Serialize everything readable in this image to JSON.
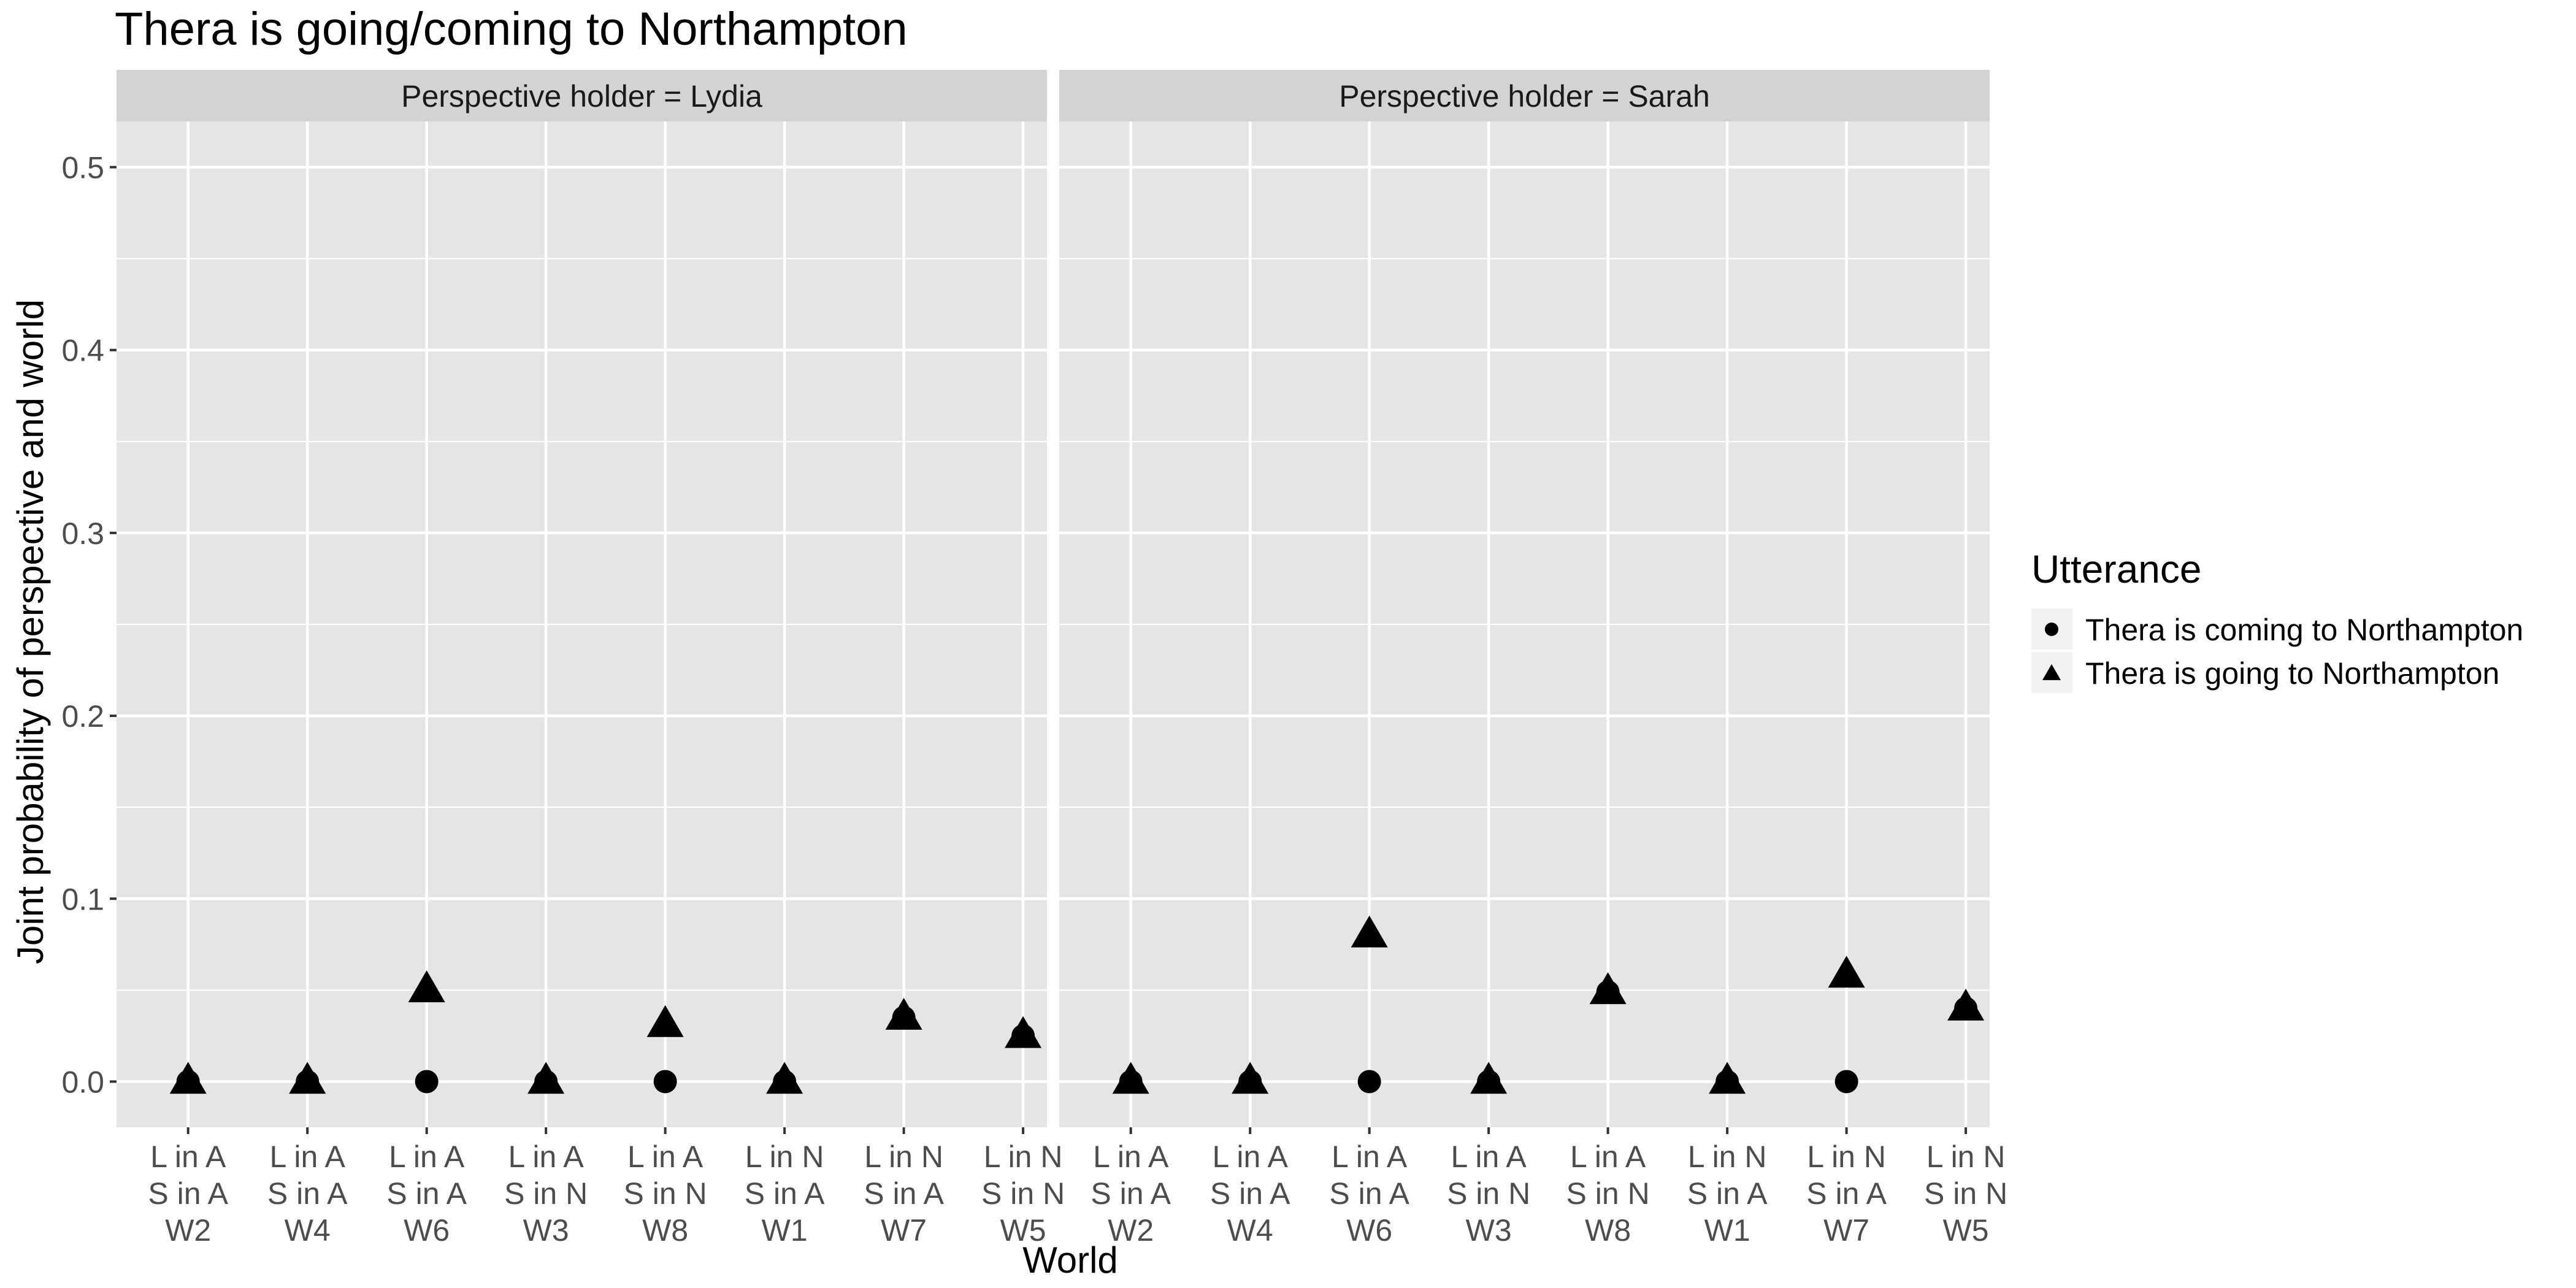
{
  "chart_data": {
    "type": "scatter",
    "title": "Thera is going/coming to Northampton",
    "xlabel": "World",
    "ylabel": "Joint probability of perspective and world",
    "ylim": [
      -0.025,
      0.525
    ],
    "y_ticks": [
      "0.0",
      "0.1",
      "0.2",
      "0.3",
      "0.4",
      "0.5"
    ],
    "y_tick_values": [
      0.0,
      0.1,
      0.2,
      0.3,
      0.4,
      0.5
    ],
    "categories": [
      {
        "line1": "L in A",
        "line2": "S in A",
        "line3": "W2"
      },
      {
        "line1": "L in A",
        "line2": "S in A",
        "line3": "W4"
      },
      {
        "line1": "L in A",
        "line2": "S in A",
        "line3": "W6"
      },
      {
        "line1": "L in A",
        "line2": "S in N",
        "line3": "W3"
      },
      {
        "line1": "L in A",
        "line2": "S in N",
        "line3": "W8"
      },
      {
        "line1": "L in N",
        "line2": "S in A",
        "line3": "W1"
      },
      {
        "line1": "L in N",
        "line2": "S in A",
        "line3": "W7"
      },
      {
        "line1": "L in N",
        "line2": "S in N",
        "line3": "W5"
      }
    ],
    "facets": [
      {
        "strip": "Perspective holder = Lydia",
        "series": [
          {
            "name": "Thera is coming to Northampton",
            "shape": "circle",
            "values": [
              0.0,
              0.0,
              0.0,
              0.0,
              0.0,
              0.0,
              0.035,
              0.025
            ]
          },
          {
            "name": "Thera is going to Northampton",
            "shape": "triangle",
            "values": [
              0.0,
              0.0,
              0.05,
              0.0,
              0.031,
              0.0,
              0.035,
              0.025
            ]
          }
        ]
      },
      {
        "strip": "Perspective holder = Sarah",
        "series": [
          {
            "name": "Thera is coming to Northampton",
            "shape": "circle",
            "values": [
              0.0,
              0.0,
              0.0,
              0.0,
              0.049,
              0.0,
              0.0,
              0.04
            ]
          },
          {
            "name": "Thera is going to Northampton",
            "shape": "triangle",
            "values": [
              0.0,
              0.0,
              0.08,
              0.0,
              0.049,
              0.0,
              0.058,
              0.04
            ]
          }
        ]
      }
    ],
    "legend": {
      "title": "Utterance",
      "position": "right",
      "items": [
        {
          "label": "Thera is coming to Northampton",
          "shape": "circle"
        },
        {
          "label": "Thera is going to Northampton",
          "shape": "triangle"
        }
      ]
    },
    "colors": {
      "panel_background": "#e5e5e5",
      "strip_background": "#d3d3d3",
      "grid": "#ffffff",
      "point": "#000000",
      "tick_text": "#4d4d4d"
    }
  }
}
